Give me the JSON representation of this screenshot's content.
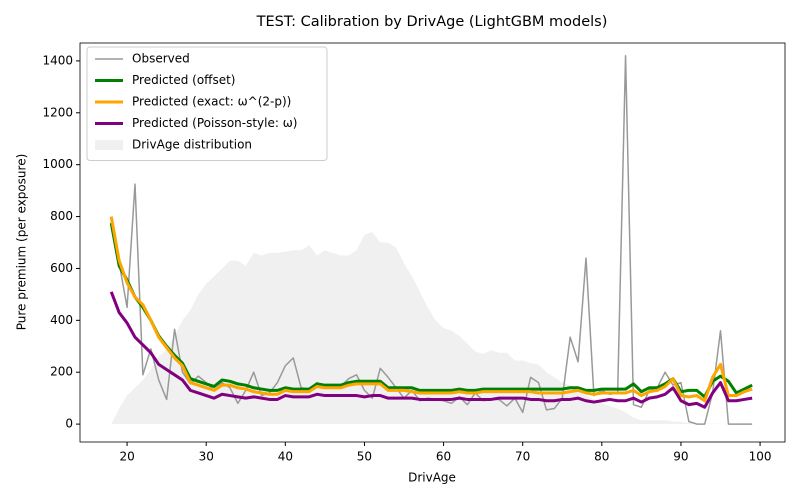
{
  "chart_data": {
    "type": "line",
    "title": "TEST: Calibration by DrivAge (LightGBM models)",
    "xlabel": "DrivAge",
    "ylabel": "Pure premium (per exposure)",
    "x": [
      18,
      19,
      20,
      21,
      22,
      23,
      24,
      25,
      26,
      27,
      28,
      29,
      30,
      31,
      32,
      33,
      34,
      35,
      36,
      37,
      38,
      39,
      40,
      41,
      42,
      43,
      44,
      45,
      46,
      47,
      48,
      49,
      50,
      51,
      52,
      53,
      54,
      55,
      56,
      57,
      58,
      59,
      60,
      61,
      62,
      63,
      64,
      65,
      66,
      67,
      68,
      69,
      70,
      71,
      72,
      73,
      74,
      75,
      76,
      77,
      78,
      79,
      80,
      81,
      82,
      83,
      84,
      85,
      86,
      87,
      88,
      89,
      90,
      91,
      92,
      93,
      94,
      95,
      96,
      97,
      98,
      99
    ],
    "series": [
      {
        "name": "Observed",
        "color": "#999999",
        "width": 1.5,
        "style": "line",
        "values": [
          780,
          620,
          450,
          925,
          190,
          290,
          170,
          95,
          365,
          200,
          155,
          185,
          160,
          130,
          160,
          140,
          80,
          130,
          200,
          110,
          120,
          160,
          225,
          255,
          140,
          135,
          160,
          140,
          150,
          145,
          175,
          190,
          130,
          100,
          215,
          180,
          140,
          100,
          130,
          90,
          100,
          95,
          90,
          80,
          105,
          75,
          120,
          90,
          95,
          95,
          70,
          100,
          45,
          180,
          160,
          55,
          60,
          100,
          335,
          240,
          640,
          110,
          130,
          115,
          120,
          1420,
          75,
          65,
          130,
          140,
          200,
          150,
          160,
          10,
          0,
          0,
          120,
          360,
          0,
          0,
          0,
          0
        ]
      },
      {
        "name": "Predicted (offset)",
        "color": "#008000",
        "width": 3,
        "style": "line",
        "values": [
          775,
          610,
          555,
          490,
          450,
          400,
          340,
          300,
          265,
          235,
          175,
          165,
          155,
          145,
          170,
          165,
          155,
          150,
          140,
          135,
          130,
          130,
          140,
          135,
          135,
          135,
          155,
          150,
          150,
          150,
          160,
          165,
          165,
          165,
          165,
          140,
          140,
          140,
          140,
          130,
          130,
          130,
          130,
          130,
          135,
          130,
          130,
          135,
          135,
          135,
          135,
          135,
          135,
          135,
          135,
          135,
          135,
          135,
          140,
          140,
          130,
          130,
          135,
          135,
          135,
          135,
          155,
          125,
          140,
          140,
          155,
          175,
          125,
          130,
          130,
          105,
          165,
          185,
          165,
          120,
          135,
          150
        ]
      },
      {
        "name": "Predicted (exact: ω^(2-p))",
        "color": "#ffa500",
        "width": 3,
        "style": "line",
        "values": [
          800,
          630,
          545,
          490,
          460,
          400,
          335,
          295,
          255,
          225,
          160,
          150,
          140,
          130,
          150,
          150,
          140,
          135,
          125,
          120,
          115,
          115,
          130,
          125,
          125,
          125,
          145,
          140,
          140,
          140,
          150,
          155,
          155,
          155,
          155,
          130,
          130,
          130,
          125,
          120,
          120,
          120,
          120,
          120,
          125,
          120,
          120,
          125,
          125,
          125,
          125,
          125,
          125,
          125,
          120,
          120,
          120,
          120,
          125,
          130,
          120,
          115,
          120,
          120,
          120,
          120,
          130,
          110,
          125,
          130,
          145,
          175,
          110,
          105,
          110,
          90,
          180,
          230,
          110,
          110,
          125,
          135
        ]
      },
      {
        "name": "Predicted (Poisson-style: ω)",
        "color": "#800080",
        "width": 3,
        "style": "line",
        "values": [
          510,
          430,
          390,
          335,
          305,
          275,
          230,
          210,
          190,
          170,
          130,
          120,
          110,
          100,
          115,
          110,
          105,
          100,
          105,
          100,
          95,
          95,
          110,
          105,
          105,
          105,
          115,
          110,
          110,
          110,
          110,
          110,
          105,
          110,
          110,
          100,
          100,
          100,
          100,
          95,
          95,
          95,
          95,
          95,
          100,
          95,
          95,
          95,
          95,
          100,
          100,
          100,
          100,
          95,
          95,
          90,
          90,
          95,
          95,
          100,
          90,
          85,
          90,
          95,
          90,
          90,
          100,
          85,
          100,
          105,
          115,
          140,
          90,
          75,
          80,
          65,
          120,
          160,
          90,
          90,
          95,
          100
        ]
      },
      {
        "name": "DrivAge distribution",
        "color": "#e6e6e6",
        "style": "area",
        "values": [
          0,
          60,
          110,
          140,
          170,
          210,
          260,
          290,
          340,
          400,
          440,
          500,
          540,
          570,
          600,
          630,
          630,
          610,
          660,
          650,
          660,
          660,
          665,
          670,
          670,
          690,
          650,
          670,
          660,
          650,
          650,
          670,
          730,
          740,
          700,
          700,
          680,
          620,
          570,
          510,
          450,
          400,
          370,
          360,
          340,
          310,
          280,
          270,
          285,
          275,
          275,
          245,
          245,
          235,
          230,
          200,
          180,
          160,
          150,
          130,
          110,
          95,
          80,
          70,
          60,
          45,
          25,
          15,
          15,
          15,
          15,
          10,
          8,
          5,
          3,
          2,
          2,
          1,
          1,
          0,
          0,
          0
        ]
      }
    ],
    "xlim": [
      14.05,
      103.15
    ],
    "ylim": [
      -69,
      1469
    ],
    "xticks": [
      20,
      30,
      40,
      50,
      60,
      70,
      80,
      90,
      100
    ],
    "yticks": [
      0,
      200,
      400,
      600,
      800,
      1000,
      1200,
      1400
    ],
    "legend": "upper left"
  }
}
